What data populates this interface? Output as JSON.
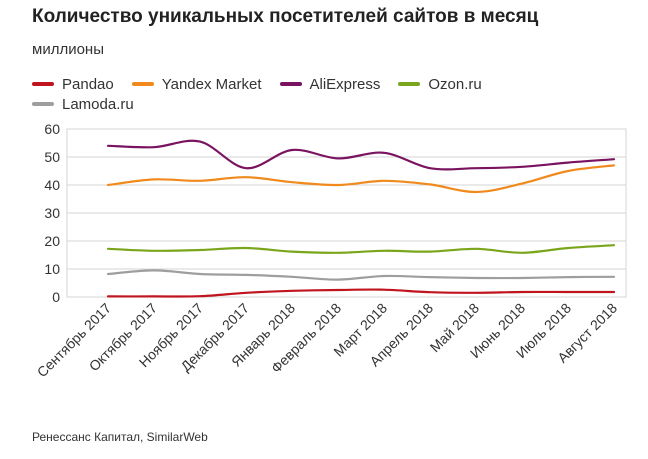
{
  "header": {
    "title": "Количество уникальных посетителей сайтов в месяц",
    "subtitle": "миллионы"
  },
  "source": "Ренессанс Капитал, SimilarWeb",
  "chart_data": {
    "type": "line",
    "categories": [
      "Сентябрь 2017",
      "Октябрь 2017",
      "Ноябрь 2017",
      "Декабрь 2017",
      "Январь 2018",
      "Февраль 2018",
      "Март 2018",
      "Апрель 2018",
      "Май 2018",
      "Июнь 2018",
      "Июль 2018",
      "Август 2018"
    ],
    "ylim": [
      0,
      60
    ],
    "yticks": [
      0,
      10,
      20,
      30,
      40,
      50,
      60
    ],
    "grid": true,
    "legend_position": "top",
    "series": [
      {
        "name": "Pandao",
        "color": "#c0141e",
        "values": [
          0.2,
          0.2,
          0.3,
          1.5,
          2.2,
          2.5,
          2.6,
          1.7,
          1.5,
          1.8,
          1.8,
          1.8
        ]
      },
      {
        "name": "Yandex Market",
        "color": "#f08a1c",
        "values": [
          40,
          42,
          41.5,
          42.8,
          41,
          40,
          41.5,
          40.2,
          37.5,
          40.5,
          45,
          47
        ]
      },
      {
        "name": "AliExpress",
        "color": "#7a1460",
        "values": [
          54,
          53.5,
          55.5,
          46,
          52.5,
          49.5,
          51.5,
          46,
          46,
          46.5,
          48,
          49.2
        ]
      },
      {
        "name": "Ozon.ru",
        "color": "#7aa61c",
        "values": [
          17.2,
          16.5,
          16.8,
          17.5,
          16.2,
          15.8,
          16.5,
          16.2,
          17.2,
          15.8,
          17.5,
          18.5
        ]
      },
      {
        "name": "Lamoda.ru",
        "color": "#9e9e9e",
        "values": [
          8.2,
          9.5,
          8.2,
          7.9,
          7.2,
          6.2,
          7.5,
          7.1,
          6.8,
          6.8,
          7.1,
          7.2
        ]
      }
    ]
  }
}
